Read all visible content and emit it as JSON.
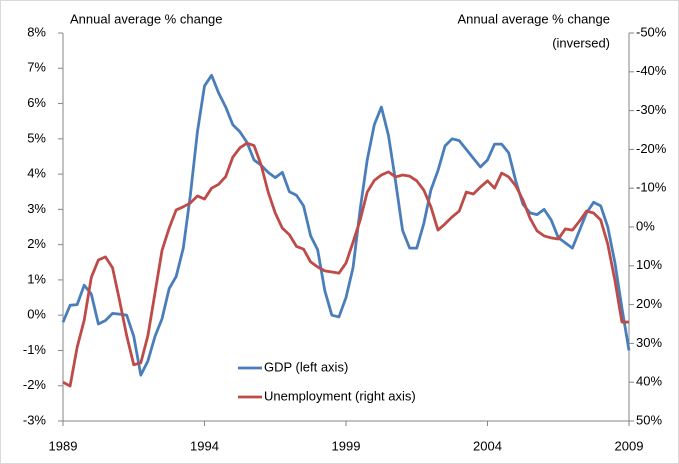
{
  "chart_data": {
    "type": "line",
    "y_label": "Annual average % change",
    "y2_label": [
      "Annual average % change",
      "(inversed)"
    ],
    "x": [
      1989,
      1989.25,
      1989.5,
      1989.75,
      1990,
      1990.25,
      1990.5,
      1990.75,
      1991,
      1991.25,
      1991.5,
      1991.75,
      1992,
      1992.25,
      1992.5,
      1992.75,
      1993,
      1993.25,
      1993.5,
      1993.75,
      1994,
      1994.25,
      1994.5,
      1994.75,
      1995,
      1995.25,
      1995.5,
      1995.75,
      1996,
      1996.25,
      1996.5,
      1996.75,
      1997,
      1997.25,
      1997.5,
      1997.75,
      1998,
      1998.25,
      1998.5,
      1998.75,
      1999,
      1999.25,
      1999.5,
      1999.75,
      2000,
      2000.25,
      2000.5,
      2000.75,
      2001,
      2001.25,
      2001.5,
      2001.75,
      2002,
      2002.25,
      2002.5,
      2002.75,
      2003,
      2003.25,
      2003.5,
      2003.75,
      2004,
      2004.25,
      2004.5,
      2004.75,
      2005,
      2005.25,
      2005.5,
      2005.75,
      2006,
      2006.25,
      2006.5,
      2006.75,
      2007,
      2007.25,
      2007.5,
      2007.75,
      2008,
      2008.25,
      2008.5,
      2008.75,
      2009
    ],
    "series": [
      {
        "name": "GDP (left axis)",
        "color": "#4a7ebb",
        "axis": "y",
        "values": [
          -0.2,
          0.28,
          0.3,
          0.85,
          0.6,
          -0.25,
          -0.15,
          0.05,
          0.03,
          0,
          -0.6,
          -1.7,
          -1.3,
          -0.6,
          -0.1,
          0.75,
          1.1,
          1.9,
          3.4,
          5.2,
          6.5,
          6.8,
          6.3,
          5.9,
          5.4,
          5.2,
          4.9,
          4.4,
          4.25,
          4.05,
          3.9,
          4.05,
          3.5,
          3.4,
          3.1,
          2.25,
          1.85,
          0.7,
          0,
          -0.05,
          0.5,
          1.35,
          3.0,
          4.4,
          5.4,
          5.9,
          5.1,
          3.8,
          2.4,
          1.9,
          1.9,
          2.6,
          3.55,
          4.1,
          4.8,
          5.0,
          4.95,
          4.7,
          4.45,
          4.2,
          4.4,
          4.85,
          4.85,
          4.6,
          3.8,
          3.15,
          2.9,
          2.85,
          3.0,
          2.7,
          2.2,
          2.05,
          1.9,
          2.4,
          2.9,
          3.2,
          3.1,
          2.5,
          1.5,
          0.2,
          -1.0
        ]
      },
      {
        "name": "Unemployment (right axis)",
        "color": "#be4b48",
        "axis": "y2",
        "values": [
          40,
          41,
          31,
          24,
          13,
          8.5,
          7.7,
          10.5,
          19,
          28,
          35.5,
          35,
          28,
          17,
          6,
          0.3,
          -4.4,
          -5.2,
          -6.2,
          -8,
          -7.2,
          -10,
          -11,
          -13,
          -18,
          -20.4,
          -21.6,
          -21,
          -16,
          -9,
          -3.6,
          0.3,
          2,
          5,
          5.7,
          9,
          10.3,
          11.3,
          11.6,
          11.9,
          9.3,
          3.9,
          -1.8,
          -9,
          -12,
          -13.4,
          -14.2,
          -12.9,
          -13.4,
          -13.1,
          -11.9,
          -9.5,
          -5.2,
          0.8,
          -0.8,
          -2.6,
          -4.1,
          -9,
          -8.5,
          -10.3,
          -11.9,
          -10,
          -13.9,
          -12.9,
          -10.6,
          -7,
          -2.3,
          1,
          2.3,
          2.8,
          3.1,
          0.5,
          0.8,
          -1.5,
          -4.1,
          -3.6,
          -1.8,
          4.4,
          13.7,
          24.5,
          24.5
        ]
      }
    ],
    "xlim": [
      1989,
      2009
    ],
    "xticks": [
      1989,
      1994,
      1999,
      2004,
      2009
    ],
    "ylim": [
      -3,
      8
    ],
    "yticks": [
      {
        "value": -3,
        "label": "-3%"
      },
      {
        "value": -2,
        "label": "-2%"
      },
      {
        "value": -1,
        "label": "-1%"
      },
      {
        "value": 0,
        "label": "0%"
      },
      {
        "value": 1,
        "label": "1%"
      },
      {
        "value": 2,
        "label": "2%"
      },
      {
        "value": 3,
        "label": "3%"
      },
      {
        "value": 4,
        "label": "4%"
      },
      {
        "value": 5,
        "label": "5%"
      },
      {
        "value": 6,
        "label": "6%"
      },
      {
        "value": 7,
        "label": "7%"
      },
      {
        "value": 8,
        "label": "8%"
      }
    ],
    "y2lim": [
      50,
      -50
    ],
    "y2ticks": [
      {
        "value": 50,
        "label": "50%"
      },
      {
        "value": 40,
        "label": "40%"
      },
      {
        "value": 30,
        "label": "30%"
      },
      {
        "value": 20,
        "label": "20%"
      },
      {
        "value": 10,
        "label": "10%"
      },
      {
        "value": 0,
        "label": "0%"
      },
      {
        "value": -10,
        "label": "-10%"
      },
      {
        "value": -20,
        "label": "-20%"
      },
      {
        "value": -30,
        "label": "-30%"
      },
      {
        "value": -40,
        "label": "-40%"
      },
      {
        "value": -50,
        "label": "-50%"
      }
    ],
    "grid": false,
    "legend": "lower center"
  }
}
